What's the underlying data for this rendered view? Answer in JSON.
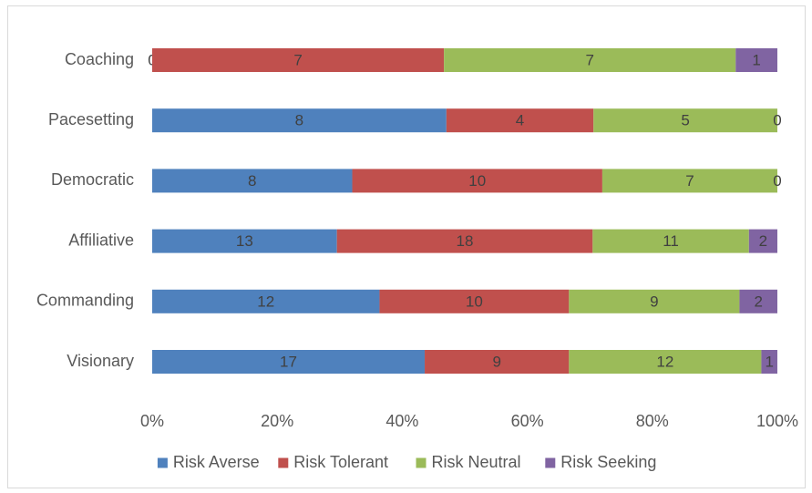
{
  "chart_data": {
    "type": "bar",
    "orientation": "horizontal",
    "stacking": "percent",
    "categories": [
      "Coaching",
      "Pacesetting",
      "Democratic",
      "Affiliative",
      "Commanding",
      "Visionary"
    ],
    "series": [
      {
        "name": "Risk Averse",
        "color": "#4f81bd",
        "values": [
          0,
          8,
          8,
          13,
          12,
          17
        ]
      },
      {
        "name": "Risk Tolerant",
        "color": "#c0504d",
        "values": [
          7,
          4,
          10,
          18,
          10,
          9
        ]
      },
      {
        "name": "Risk Neutral",
        "color": "#9bbb59",
        "values": [
          7,
          5,
          7,
          11,
          9,
          12
        ]
      },
      {
        "name": "Risk Seeking",
        "color": "#8064a2",
        "values": [
          1,
          0,
          0,
          2,
          2,
          1
        ]
      }
    ],
    "x_ticks": [
      "0%",
      "20%",
      "40%",
      "60%",
      "80%",
      "100%"
    ],
    "xlim": [
      0,
      100
    ],
    "legend_position": "bottom",
    "grid": false,
    "title": "",
    "xlabel": "",
    "ylabel": ""
  }
}
